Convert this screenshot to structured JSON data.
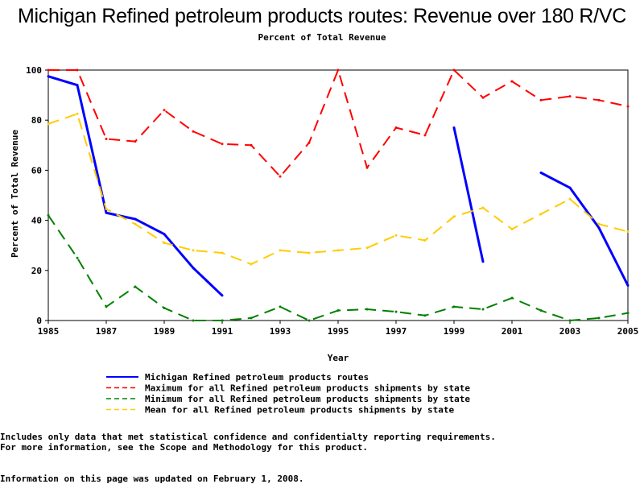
{
  "chart_data": {
    "type": "line",
    "title": "Michigan Refined petroleum products routes: Revenue over 180 R/VC",
    "subtitle": "Percent of Total Revenue",
    "xlabel": "Year",
    "ylabel": "Percent of Total Revenue",
    "xlim": [
      1985,
      2005
    ],
    "ylim": [
      0,
      100
    ],
    "x_ticks": [
      1985,
      1987,
      1989,
      1991,
      1993,
      1995,
      1997,
      1999,
      2001,
      2003,
      2005
    ],
    "y_ticks": [
      0,
      20,
      40,
      60,
      80,
      100
    ],
    "grid": false,
    "legend_position": "bottom",
    "x": [
      1985,
      1986,
      1987,
      1988,
      1989,
      1990,
      1991,
      1992,
      1993,
      1994,
      1995,
      1996,
      1997,
      1998,
      1999,
      2000,
      2001,
      2002,
      2003,
      2004,
      2005
    ],
    "series": [
      {
        "name": "Michigan Refined petroleum products routes",
        "color": "#0000ff",
        "style": "solid",
        "values": [
          97.5,
          94,
          43,
          40.5,
          34.5,
          21,
          10,
          null,
          null,
          null,
          null,
          null,
          null,
          null,
          77,
          23.5,
          null,
          59,
          53,
          37,
          14
        ]
      },
      {
        "name": "Maximum for all Refined petroleum products shipments by state",
        "color": "#ff0000",
        "style": "dashed",
        "values": [
          100,
          100,
          72.5,
          71.5,
          84,
          75.5,
          70.5,
          70,
          57.5,
          71,
          100,
          61,
          77,
          74,
          100,
          89,
          95.5,
          88,
          89.5,
          88,
          85.5
        ]
      },
      {
        "name": "Minimum for all Refined petroleum products shipments by state",
        "color": "#008000",
        "style": "dashed",
        "values": [
          42,
          25,
          5.5,
          13.5,
          5,
          0,
          0,
          1,
          5.5,
          0,
          4,
          4.5,
          3.5,
          2,
          5.5,
          4.5,
          9,
          4,
          0,
          1,
          3
        ]
      },
      {
        "name": "Mean for all Refined petroleum products shipments by state",
        "color": "#ffcc00",
        "style": "dashed",
        "values": [
          78.5,
          82.5,
          44.5,
          38.5,
          31,
          28,
          27,
          22.5,
          28,
          27,
          28,
          29,
          34,
          32,
          41.5,
          45,
          36.5,
          42.5,
          48.5,
          38.5,
          35.5
        ]
      }
    ]
  },
  "footnotes": {
    "line1": "Includes only data that met statistical confidence and confidentialty reporting requirements.",
    "line2": "For more information, see the Scope and Methodology for this product.",
    "updated": "Information on this page was updated on February 1, 2008."
  }
}
